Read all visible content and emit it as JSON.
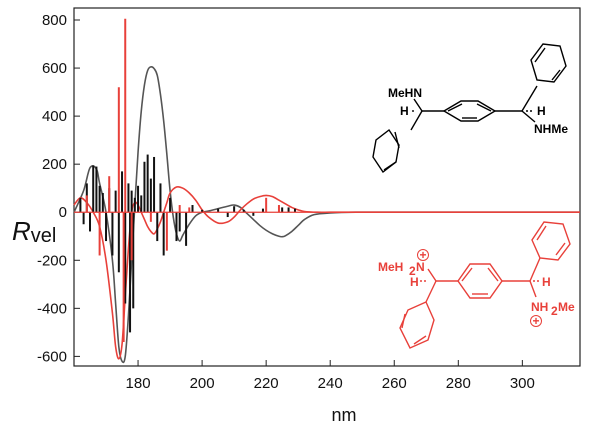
{
  "chart_data": {
    "type": "line",
    "xlabel": "nm",
    "ylabel": "R",
    "ylabel_sub": "vel",
    "xlim": [
      160,
      318
    ],
    "ylim": [
      -640,
      850
    ],
    "x_ticks": [
      180,
      200,
      220,
      240,
      260,
      280,
      300
    ],
    "y_ticks": [
      -600,
      -400,
      -200,
      0,
      200,
      400,
      600,
      800
    ],
    "grid": false,
    "legend": "none",
    "series": [
      {
        "color": "#555555",
        "style": "curve",
        "x": [
          160,
          163,
          165,
          167,
          168,
          170,
          172,
          173,
          174,
          175,
          176,
          177,
          178,
          179,
          180,
          181,
          182,
          183,
          184,
          185,
          186,
          187,
          188,
          189,
          190,
          191,
          192,
          193,
          194,
          196,
          198,
          200,
          202,
          205,
          208,
          210,
          212,
          214,
          216,
          218,
          220,
          222,
          224,
          225,
          226,
          228,
          230,
          232,
          235,
          240,
          248,
          260,
          318
        ],
        "y": [
          0,
          90,
          185,
          180,
          120,
          0,
          -200,
          -380,
          -560,
          -620,
          -600,
          -430,
          -200,
          30,
          250,
          420,
          530,
          590,
          605,
          598,
          570,
          490,
          380,
          240,
          90,
          -20,
          -90,
          -120,
          -95,
          -50,
          -15,
          0,
          5,
          15,
          25,
          30,
          20,
          -5,
          -30,
          -55,
          -75,
          -90,
          -100,
          -102,
          -98,
          -80,
          -55,
          -30,
          -10,
          -3,
          0,
          0,
          0
        ]
      },
      {
        "color": "#e8403a",
        "style": "curve",
        "x": [
          160,
          162,
          164,
          166,
          168,
          170,
          172,
          173,
          174,
          175,
          176,
          177,
          178,
          179,
          180,
          181,
          182,
          183,
          184,
          185,
          186,
          187,
          188,
          189,
          190,
          192,
          194,
          196,
          198,
          200,
          202,
          205,
          208,
          210,
          212,
          214,
          216,
          218,
          220,
          222,
          224,
          226,
          228,
          230,
          232,
          236,
          240,
          246,
          260,
          318
        ],
        "y": [
          30,
          60,
          40,
          0,
          -60,
          -200,
          -420,
          -560,
          -610,
          -550,
          -350,
          -150,
          0,
          40,
          30,
          0,
          -30,
          -60,
          -80,
          -90,
          -70,
          -40,
          0,
          40,
          80,
          105,
          100,
          80,
          50,
          10,
          -20,
          -45,
          -40,
          -20,
          10,
          35,
          55,
          65,
          70,
          65,
          50,
          35,
          20,
          10,
          3,
          0,
          0,
          0,
          0,
          0
        ]
      },
      {
        "color": "#111111",
        "style": "sticks",
        "x": [
          162,
          163,
          164,
          165,
          166,
          167,
          168,
          169,
          170,
          171,
          172,
          173,
          174,
          175,
          176,
          177,
          177.5,
          178,
          178.5,
          179,
          180,
          181,
          182,
          183,
          184,
          185,
          186,
          187,
          188,
          190,
          192,
          193,
          195,
          197,
          200,
          205,
          208,
          210,
          213,
          216,
          219,
          225,
          227,
          229
        ],
        "y": [
          60,
          -50,
          120,
          -80,
          195,
          190,
          110,
          80,
          -120,
          100,
          -180,
          90,
          -250,
          170,
          -380,
          120,
          -500,
          90,
          -400,
          60,
          110,
          70,
          210,
          240,
          140,
          230,
          -120,
          120,
          -180,
          60,
          -120,
          -80,
          -140,
          30,
          10,
          15,
          -20,
          25,
          10,
          -15,
          15,
          20,
          20,
          15
        ]
      },
      {
        "color": "#e8403a",
        "style": "sticks",
        "x": [
          164,
          168,
          171,
          174,
          175.5,
          176,
          178,
          184,
          189,
          193,
          196,
          220,
          224
        ],
        "y": [
          70,
          -180,
          150,
          520,
          -540,
          805,
          -200,
          -40,
          -160,
          30,
          20,
          60,
          30
        ]
      }
    ]
  },
  "structures": {
    "neutral": {
      "color": "#000000",
      "labels": [
        "MeHN",
        "H",
        "H",
        "NHMe"
      ]
    },
    "protonated": {
      "color": "#e8403a",
      "labels": [
        "MeH",
        "2",
        "N",
        "H",
        "H",
        "NH",
        "2",
        "Me"
      ],
      "charge_symbol": "+"
    }
  }
}
